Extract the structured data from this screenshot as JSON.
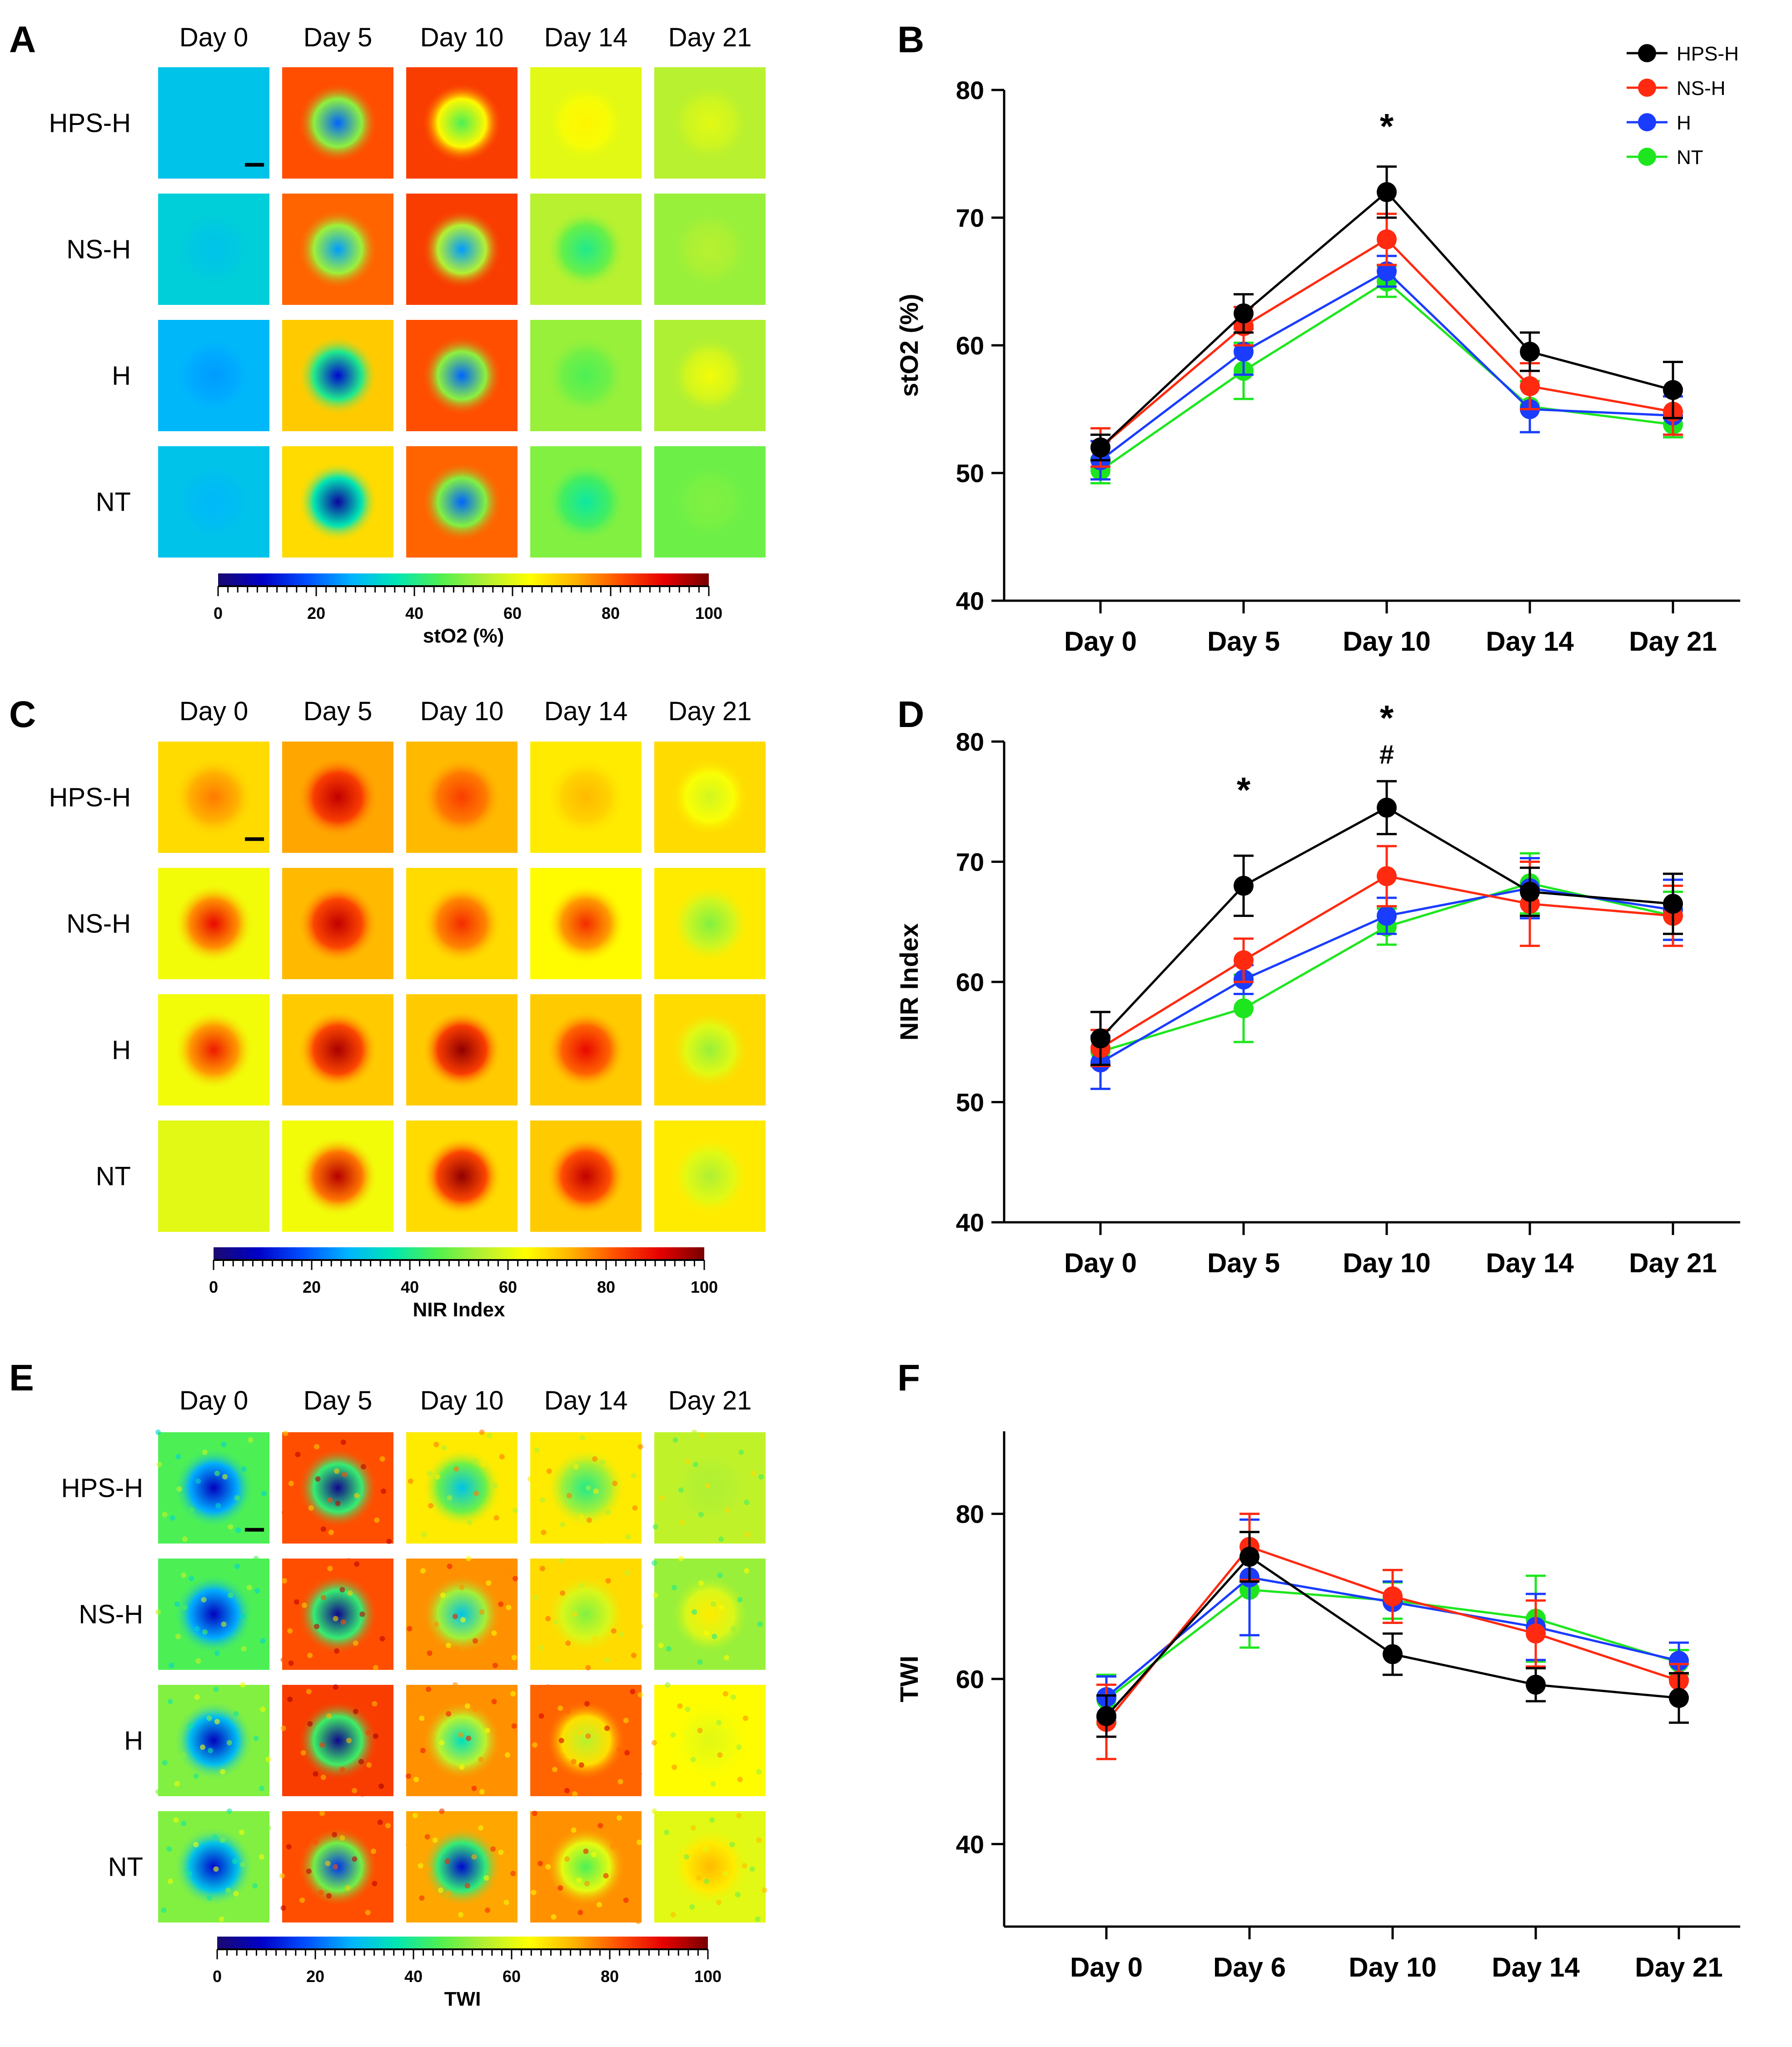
{
  "figure": {
    "panel_letters": [
      "A",
      "B",
      "C",
      "D",
      "E",
      "F"
    ]
  },
  "colors": {
    "HPS-H": "#000000",
    "NS-H": "#ff2a10",
    "H": "#1a3cff",
    "NT": "#1ee61e",
    "colormap": [
      "#1a0a70",
      "#0000c8",
      "#0050ff",
      "#00b4ff",
      "#00e6b4",
      "#50f050",
      "#b4f032",
      "#ffff00",
      "#ffb400",
      "#ff5000",
      "#e60000",
      "#780000"
    ]
  },
  "heatmaps": [
    {
      "panel": "A",
      "days": [
        "Day 0",
        "Day 5",
        "Day 10",
        "Day 14",
        "Day 21"
      ],
      "rows": [
        "HPS-H",
        "NS-H",
        "H",
        "NT"
      ],
      "colorbar": {
        "ticks": [
          "0",
          "20",
          "40",
          "60",
          "80",
          "100"
        ],
        "label": "stO2 (%)"
      },
      "cell_values": [
        [
          30,
          82,
          84,
          60,
          55
        ],
        [
          32,
          80,
          84,
          55,
          52
        ],
        [
          28,
          70,
          82,
          52,
          54
        ],
        [
          30,
          68,
          80,
          50,
          48
        ]
      ],
      "center_values": [
        [
          30,
          20,
          45,
          65,
          60
        ],
        [
          30,
          25,
          25,
          40,
          55
        ],
        [
          25,
          10,
          20,
          45,
          62
        ],
        [
          28,
          5,
          20,
          38,
          50
        ]
      ],
      "tile_style": "smooth"
    },
    {
      "panel": "C",
      "days": [
        "Day 0",
        "Day 5",
        "Day 10",
        "Day 14",
        "Day 21"
      ],
      "rows": [
        "HPS-H",
        "NS-H",
        "H",
        "NT"
      ],
      "colorbar": {
        "ticks": [
          "0",
          "20",
          "40",
          "60",
          "80",
          "100"
        ],
        "label": "NIR Index"
      },
      "cell_values": [
        [
          68,
          74,
          72,
          66,
          68
        ],
        [
          62,
          72,
          68,
          64,
          66
        ],
        [
          62,
          70,
          70,
          70,
          68
        ],
        [
          60,
          62,
          68,
          70,
          66
        ]
      ],
      "center_values": [
        [
          78,
          94,
          84,
          72,
          58
        ],
        [
          90,
          94,
          86,
          86,
          50
        ],
        [
          88,
          96,
          98,
          90,
          52
        ],
        [
          60,
          95,
          98,
          94,
          54
        ]
      ],
      "tile_style": "smooth"
    },
    {
      "panel": "E",
      "days": [
        "Day 0",
        "Day 5",
        "Day 10",
        "Day 14",
        "Day 21"
      ],
      "rows": [
        "HPS-H",
        "NS-H",
        "H",
        "NT"
      ],
      "colorbar": {
        "ticks": [
          "0",
          "20",
          "40",
          "60",
          "80",
          "100"
        ],
        "label": "TWI"
      },
      "cell_values": [
        [
          45,
          82,
          66,
          66,
          56
        ],
        [
          45,
          82,
          76,
          68,
          52
        ],
        [
          50,
          84,
          76,
          80,
          64
        ],
        [
          50,
          82,
          74,
          76,
          60
        ]
      ],
      "center_values": [
        [
          8,
          3,
          30,
          40,
          54
        ],
        [
          8,
          3,
          30,
          50,
          66
        ],
        [
          8,
          3,
          35,
          55,
          60
        ],
        [
          10,
          15,
          10,
          45,
          72
        ]
      ],
      "tile_style": "noisy"
    }
  ],
  "chart_data": [
    {
      "panel": "B",
      "type": "line",
      "title": "",
      "xlabel": "",
      "ylabel": "stO2 (%)",
      "categories": [
        "Day 0",
        "Day 5",
        "Day 10",
        "Day 14",
        "Day 21"
      ],
      "ylim": [
        40,
        80
      ],
      "yticks": [
        40,
        50,
        60,
        70,
        80
      ],
      "ytick_labels": [
        "40",
        "50",
        "60",
        "70",
        "80"
      ],
      "legend_position": "top-right",
      "series": [
        {
          "name": "HPS-H",
          "values": [
            52.0,
            62.5,
            72.0,
            59.5,
            56.5
          ],
          "errors": [
            1.0,
            1.5,
            2.0,
            1.5,
            2.2
          ]
        },
        {
          "name": "NS-H",
          "values": [
            52.0,
            61.5,
            68.3,
            56.8,
            54.8
          ],
          "errors": [
            1.5,
            1.5,
            2.0,
            1.8,
            1.8
          ]
        },
        {
          "name": "H",
          "values": [
            51.0,
            59.5,
            65.8,
            55.0,
            54.5
          ],
          "errors": [
            1.5,
            1.8,
            1.2,
            1.8,
            1.5
          ]
        },
        {
          "name": "NT",
          "values": [
            50.2,
            58.0,
            65.0,
            55.2,
            53.8
          ],
          "errors": [
            1.0,
            2.2,
            1.2,
            2.0,
            1.0
          ]
        }
      ],
      "annotations": [
        {
          "category": "Day 10",
          "value": 77.0,
          "text": "*"
        }
      ]
    },
    {
      "panel": "D",
      "type": "line",
      "title": "",
      "xlabel": "",
      "ylabel": "NIR Index",
      "categories": [
        "Day 0",
        "Day 5",
        "Day 10",
        "Day 14",
        "Day 21"
      ],
      "ylim": [
        40,
        80
      ],
      "yticks": [
        40,
        50,
        60,
        70,
        80
      ],
      "ytick_labels": [
        "40",
        "50",
        "60",
        "70",
        "80"
      ],
      "series": [
        {
          "name": "HPS-H",
          "values": [
            55.3,
            68.0,
            74.5,
            67.5,
            66.5
          ],
          "errors": [
            2.2,
            2.5,
            2.2,
            2.0,
            2.5
          ]
        },
        {
          "name": "NS-H",
          "values": [
            54.5,
            61.8,
            68.8,
            66.5,
            65.5
          ],
          "errors": [
            1.5,
            1.8,
            2.5,
            3.5,
            2.5
          ]
        },
        {
          "name": "H",
          "values": [
            53.3,
            60.2,
            65.5,
            67.8,
            66.0
          ],
          "errors": [
            2.2,
            1.2,
            1.5,
            2.5,
            2.5
          ]
        },
        {
          "name": "NT",
          "values": [
            54.2,
            57.8,
            64.6,
            68.2,
            65.5
          ],
          "errors": [
            1.2,
            2.8,
            1.5,
            2.5,
            2.0
          ]
        }
      ],
      "annotations": [
        {
          "category": "Day 5",
          "value": 75.8,
          "text": "*"
        },
        {
          "category": "Day 10",
          "value": 81.8,
          "text": "*"
        },
        {
          "category": "Day 10",
          "value": 79.0,
          "text": "#"
        }
      ]
    },
    {
      "panel": "F",
      "type": "line",
      "title": "",
      "xlabel": "",
      "ylabel": "TWI",
      "categories": [
        "Day 0",
        "Day 6",
        "Day 10",
        "Day 14",
        "Day 21"
      ],
      "ylim": [
        30,
        90
      ],
      "yticks": [
        40,
        60,
        80
      ],
      "ytick_labels": [
        "40",
        "60",
        "80"
      ],
      "series": [
        {
          "name": "HPS-H",
          "values": [
            55.5,
            74.8,
            63.0,
            59.3,
            57.7
          ],
          "errors": [
            2.5,
            3.0,
            2.5,
            2.0,
            3.0
          ]
        },
        {
          "name": "NS-H",
          "values": [
            54.8,
            76.0,
            70.0,
            65.5,
            59.8
          ],
          "errors": [
            4.5,
            4.0,
            3.2,
            4.0,
            2.0
          ]
        },
        {
          "name": "H",
          "values": [
            57.8,
            72.3,
            69.3,
            66.3,
            62.2
          ],
          "errors": [
            2.5,
            7.0,
            2.5,
            4.0,
            2.2
          ]
        },
        {
          "name": "NT",
          "values": [
            57.5,
            70.8,
            69.5,
            67.3,
            62.0
          ],
          "errors": [
            3.0,
            7.0,
            2.2,
            5.2,
            1.5
          ]
        }
      ],
      "annotations": []
    }
  ]
}
